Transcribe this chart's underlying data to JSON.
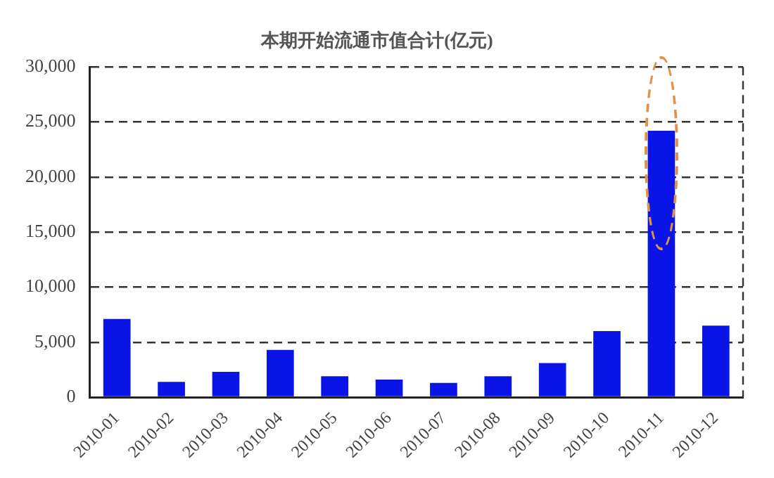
{
  "chart_data": {
    "type": "bar",
    "title": "本期开始流通市值合计(亿元)",
    "categories": [
      "2010-01",
      "2010-02",
      "2010-03",
      "2010-04",
      "2010-05",
      "2010-06",
      "2010-07",
      "2010-08",
      "2010-09",
      "2010-10",
      "2010-11",
      "2010-12"
    ],
    "values": [
      7100,
      1400,
      2300,
      4300,
      1900,
      1600,
      1300,
      1900,
      3100,
      6000,
      24200,
      6500
    ],
    "color": "#0a14e6",
    "ylim": [
      0,
      30000
    ],
    "yticks": [
      0,
      {
        "value": 5000,
        "label": "5,000"
      },
      {
        "value": 10000,
        "label": "10,000"
      },
      {
        "value": 15000,
        "label": "15,000"
      },
      {
        "value": 20000,
        "label": "20,000"
      },
      {
        "value": 25000,
        "label": "25,000"
      },
      {
        "value": 30000,
        "label": "30,000"
      }
    ],
    "grid": "y",
    "legend": false
  }
}
